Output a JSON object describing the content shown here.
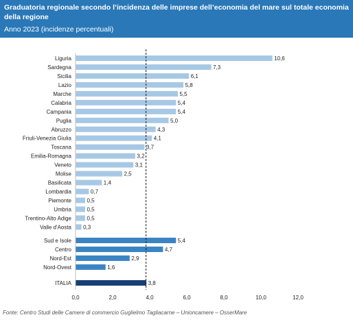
{
  "header": {
    "title": "Graduatoria regionale secondo l’incidenza delle imprese dell’economia del mare sul totale economia della regione",
    "subtitle": "Anno 2023 (incidenze percentuali)"
  },
  "source": "Fonte: Centro Studi delle Camere di commercio Guglielmo Tagliacarne – Unioncamere – OsserMare",
  "chart_data": {
    "type": "bar",
    "orientation": "horizontal",
    "xlim": [
      0,
      12
    ],
    "xticks": [
      "0,0",
      "2,0",
      "4,0",
      "6,0",
      "8,0",
      "10,0",
      "12,0"
    ],
    "reference_line": 3.8,
    "colors": {
      "region": "#a7c8e5",
      "macro": "#3a84c4",
      "italy": "#173f73"
    },
    "groups": [
      {
        "kind": "region",
        "items": [
          {
            "label": "Liguria",
            "value": 10.6,
            "value_label": "10,6"
          },
          {
            "label": "Sardegna",
            "value": 7.3,
            "value_label": "7,3"
          },
          {
            "label": "Sicilia",
            "value": 6.1,
            "value_label": "6,1"
          },
          {
            "label": "Lazio",
            "value": 5.8,
            "value_label": "5,8"
          },
          {
            "label": "Marche",
            "value": 5.5,
            "value_label": "5,5"
          },
          {
            "label": "Calabria",
            "value": 5.4,
            "value_label": "5,4"
          },
          {
            "label": "Campania",
            "value": 5.4,
            "value_label": "5,4"
          },
          {
            "label": "Puglia",
            "value": 5.0,
            "value_label": "5,0"
          },
          {
            "label": "Abruzzo",
            "value": 4.3,
            "value_label": "4,3"
          },
          {
            "label": "Friuli-Venezia Giulia",
            "value": 4.1,
            "value_label": "4,1"
          },
          {
            "label": "Toscana",
            "value": 3.7,
            "value_label": "3,7"
          },
          {
            "label": "Emilia-Romagna",
            "value": 3.2,
            "value_label": "3,2"
          },
          {
            "label": "Veneto",
            "value": 3.1,
            "value_label": "3,1"
          },
          {
            "label": "Molise",
            "value": 2.5,
            "value_label": "2,5"
          },
          {
            "label": "Basilicata",
            "value": 1.4,
            "value_label": "1,4"
          },
          {
            "label": "Lombardia",
            "value": 0.7,
            "value_label": "0,7"
          },
          {
            "label": "Piemonte",
            "value": 0.5,
            "value_label": "0,5"
          },
          {
            "label": "Umbria",
            "value": 0.5,
            "value_label": "0,5"
          },
          {
            "label": "Trentino-Alto Adige",
            "value": 0.5,
            "value_label": "0,5"
          },
          {
            "label": "Valle d'Aosta",
            "value": 0.3,
            "value_label": "0,3"
          }
        ]
      },
      {
        "kind": "macro",
        "items": [
          {
            "label": "Sud e Isole",
            "value": 5.4,
            "value_label": "5,4"
          },
          {
            "label": "Centro",
            "value": 4.7,
            "value_label": "4,7"
          },
          {
            "label": "Nord-Est",
            "value": 2.9,
            "value_label": "2,9"
          },
          {
            "label": "Nord-Ovest",
            "value": 1.6,
            "value_label": "1,6"
          }
        ]
      },
      {
        "kind": "italy",
        "items": [
          {
            "label": "ITALIA",
            "value": 3.8,
            "value_label": "3,8"
          }
        ]
      }
    ]
  }
}
